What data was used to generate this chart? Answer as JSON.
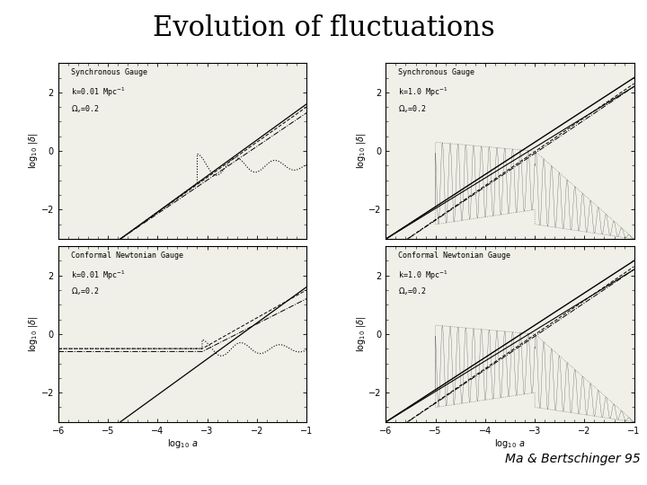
{
  "title": "Evolution of fluctuations",
  "attribution": "Ma & Bertschinger 95",
  "title_fontsize": 22,
  "background_color": "#ffffff",
  "panel_bg": "#f0f0e8",
  "xlim": [
    -6,
    -1
  ],
  "ylim": [
    -3,
    3
  ],
  "xticks": [
    -6,
    -5,
    -4,
    -3,
    -2,
    -1
  ],
  "yticks": [
    -2,
    0,
    2
  ],
  "panels": [
    {
      "col": 0,
      "row": 0,
      "gauge": "Synchronous Gauge",
      "k_txt": "k=0.01 Mpc$^{-1}$",
      "omega_txt": "$\\Omega_\\nu$=0.2",
      "high_k": false,
      "synchronous": true,
      "show_xlabel": false
    },
    {
      "col": 0,
      "row": 1,
      "gauge": "Conformal Newtonian Gauge",
      "k_txt": "k=0.01 Mpc$^{-1}$",
      "omega_txt": "$\\Omega_\\nu$=0.2",
      "high_k": false,
      "synchronous": false,
      "show_xlabel": true
    },
    {
      "col": 1,
      "row": 0,
      "gauge": "Synchronous Gauge",
      "k_txt": "k=1.0 Mpc$^{-1}$",
      "omega_txt": "$\\Omega_\\nu$=0.2",
      "high_k": true,
      "synchronous": true,
      "show_xlabel": false
    },
    {
      "col": 1,
      "row": 1,
      "gauge": "Conformal Newtonian Gauge",
      "k_txt": "k=1.0 Mpc$^{-1}$",
      "omega_txt": "$\\Omega_\\nu$=0.2",
      "high_k": true,
      "synchronous": false,
      "show_xlabel": true
    }
  ]
}
